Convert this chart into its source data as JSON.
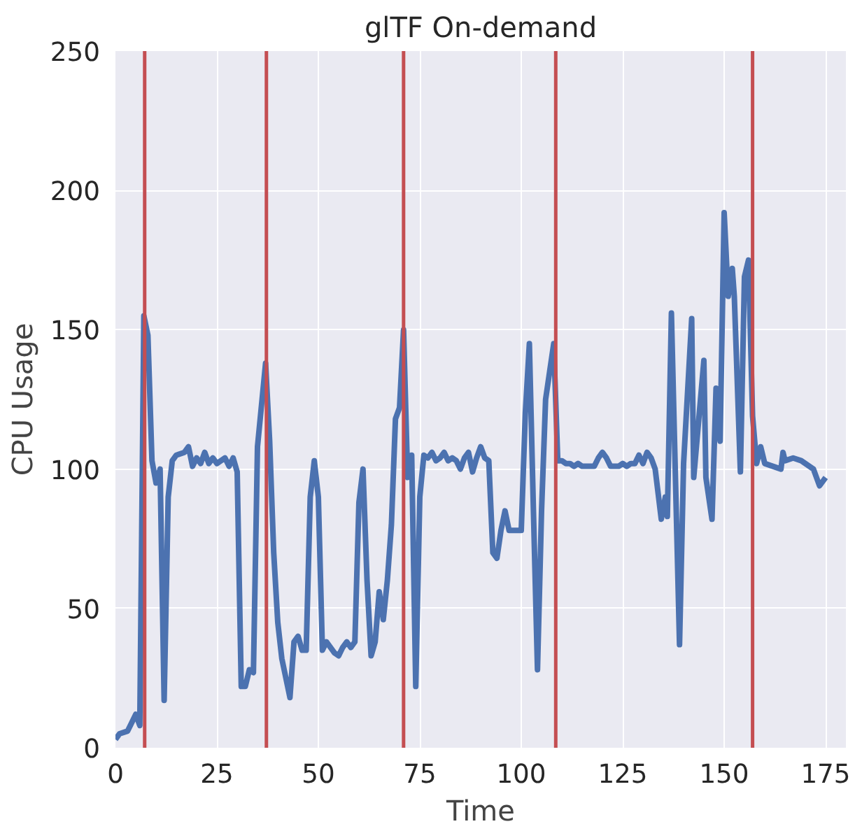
{
  "chart_data": {
    "type": "line",
    "title": "glTF On-demand",
    "xlabel": "Time",
    "ylabel": "CPU Usage",
    "xlim": [
      0,
      180
    ],
    "xticks": [
      0,
      25,
      50,
      75,
      100,
      125,
      150,
      175
    ],
    "ylim": [
      0,
      250
    ],
    "yticks": [
      0,
      50,
      100,
      150,
      200,
      250
    ],
    "grid": true,
    "line_style": "solid",
    "series": [
      {
        "color": "#4c72b0",
        "x": [
          0,
          1,
          3,
          4,
          5,
          6,
          7,
          8,
          9,
          10,
          11,
          12,
          13,
          14,
          15,
          17,
          18,
          19,
          20,
          21,
          22,
          23,
          24,
          25,
          26,
          27,
          28,
          29,
          30,
          31,
          32,
          33,
          34,
          35,
          37,
          38,
          39,
          40,
          41,
          43,
          44,
          45,
          46,
          47,
          48,
          49,
          50,
          51,
          52,
          53,
          54,
          55,
          56,
          57,
          58,
          59,
          60,
          61,
          62,
          63,
          64,
          65,
          66,
          67,
          68,
          69,
          70,
          71,
          72,
          73,
          74,
          75,
          76,
          77,
          78,
          79,
          80,
          81,
          82,
          83,
          84,
          85,
          86,
          87,
          88,
          89,
          90,
          91,
          92,
          93,
          94,
          95,
          96,
          97,
          98,
          99,
          100,
          101,
          102,
          103,
          104,
          105,
          106,
          107,
          108,
          109,
          110,
          111,
          112,
          113,
          114,
          115,
          116,
          118,
          119,
          120,
          121,
          122,
          123,
          124,
          125,
          126,
          127,
          128,
          129,
          130,
          131,
          132,
          133,
          134.5,
          135.5,
          136,
          137,
          139,
          140,
          142,
          142.5,
          145,
          145.5,
          147,
          148,
          149,
          150,
          151,
          152,
          152.5,
          154,
          155,
          156,
          157,
          158,
          159,
          160,
          164,
          164.5,
          165,
          167,
          169,
          172,
          173.5,
          175
        ],
        "values": [
          3,
          5,
          6,
          9,
          12,
          8,
          155,
          148,
          103,
          95,
          100,
          17,
          90,
          103,
          105,
          106,
          108,
          101,
          104,
          102,
          106,
          102,
          104,
          102,
          103,
          104,
          101,
          104,
          99,
          22,
          22,
          28,
          27,
          108,
          138,
          110,
          70,
          45,
          32,
          18,
          38,
          40,
          35,
          35,
          90,
          103,
          90,
          35,
          38,
          36,
          34,
          33,
          36,
          38,
          36,
          38,
          88,
          100,
          60,
          33,
          38,
          56,
          46,
          60,
          80,
          118,
          122,
          150,
          97,
          105,
          22,
          90,
          105,
          104,
          106,
          103,
          104,
          106,
          103,
          104,
          103,
          100,
          104,
          106,
          99,
          104,
          108,
          104,
          103,
          70,
          68,
          78,
          85,
          78,
          78,
          78,
          78,
          120,
          145,
          85,
          28,
          85,
          125,
          135,
          145,
          103,
          103,
          102,
          102,
          101,
          102,
          101,
          101,
          101,
          104,
          106,
          104,
          101,
          101,
          101,
          102,
          101,
          102,
          102,
          105,
          102,
          106,
          104,
          100,
          82,
          90,
          83,
          156,
          37,
          102,
          154,
          97,
          139,
          97,
          82,
          129,
          110,
          192,
          162,
          172,
          162,
          99,
          169,
          175,
          119,
          102,
          108,
          102,
          100,
          106,
          103,
          104,
          103,
          100,
          94,
          97
        ]
      }
    ],
    "ref_lines": [
      {
        "axis": "x",
        "value": 7.2,
        "color": "#c44e52"
      },
      {
        "axis": "x",
        "value": 37.2,
        "color": "#c44e52"
      },
      {
        "axis": "x",
        "value": 71,
        "color": "#c44e52"
      },
      {
        "axis": "x",
        "value": 108.5,
        "color": "#c44e52"
      },
      {
        "axis": "x",
        "value": 157,
        "color": "#c44e52"
      }
    ]
  }
}
